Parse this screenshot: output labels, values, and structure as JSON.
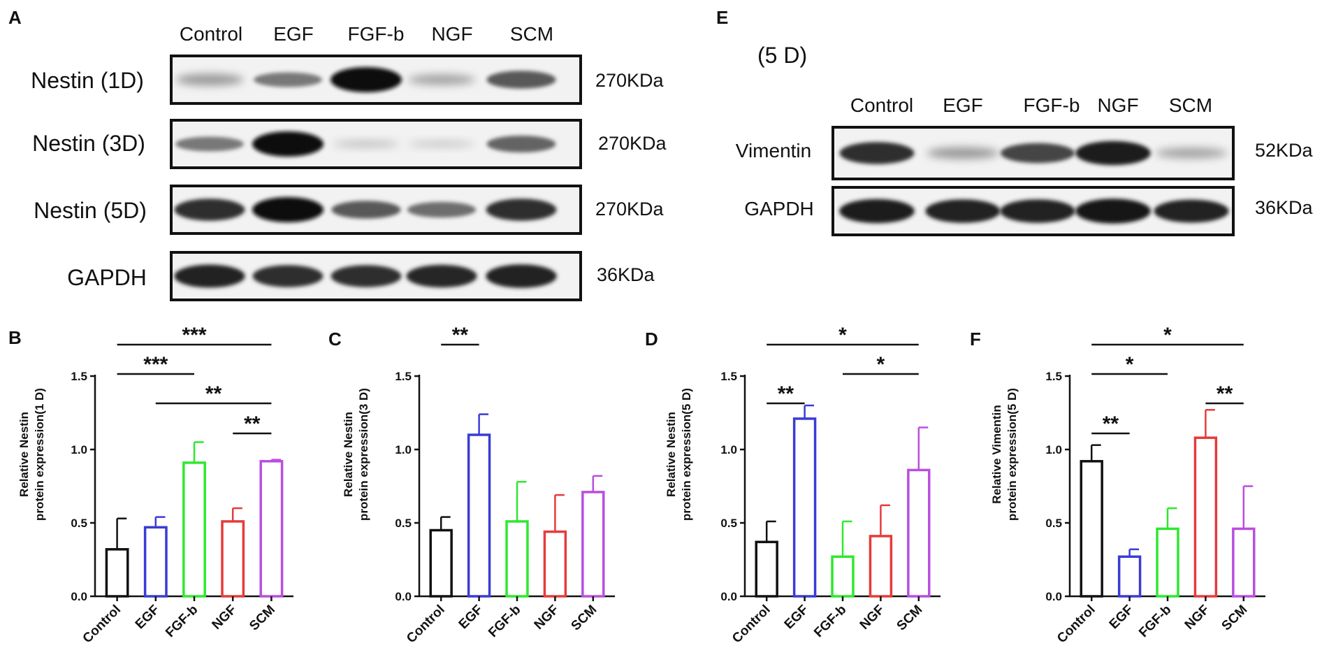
{
  "blot_a": {
    "letter": "A",
    "lanes": [
      "Control",
      "EGF",
      "FGF-b",
      "NGF",
      "SCM"
    ],
    "rows": [
      {
        "label": "Nestin (1D)",
        "kda": "270KDa",
        "intensity": [
          0.35,
          0.5,
          1.0,
          0.3,
          0.65
        ]
      },
      {
        "label": "Nestin (3D)",
        "kda": "270KDa",
        "intensity": [
          0.5,
          1.0,
          0.15,
          0.12,
          0.6
        ]
      },
      {
        "label": "Nestin (5D)",
        "kda": "270KDa",
        "intensity": [
          0.85,
          1.0,
          0.65,
          0.55,
          0.85
        ]
      },
      {
        "label": "GAPDH",
        "kda": "36KDa",
        "intensity": [
          0.9,
          0.85,
          0.85,
          0.88,
          0.92
        ]
      }
    ]
  },
  "blot_e": {
    "letter": "E",
    "title": "(5 D)",
    "lanes": [
      "Control",
      "EGF",
      "FGF-b",
      "NGF",
      "SCM"
    ],
    "rows": [
      {
        "label": "Vimentin",
        "kda": "52KDa",
        "intensity": [
          0.85,
          0.35,
          0.75,
          0.95,
          0.3
        ]
      },
      {
        "label": "GAPDH",
        "kda": "36KDa",
        "intensity": [
          0.95,
          0.92,
          0.92,
          0.98,
          0.9
        ]
      }
    ]
  },
  "colors": {
    "Control": "#111111",
    "EGF": "#3b3bd6",
    "FGF-b": "#2ee82e",
    "NGF": "#e63b3b",
    "SCM": "#b94ee0"
  },
  "chart_data": [
    {
      "type": "bar",
      "letter": "B",
      "categories": [
        "Control",
        "EGF",
        "FGF-b",
        "NGF",
        "SCM"
      ],
      "values": [
        0.32,
        0.47,
        0.91,
        0.51,
        0.92
      ],
      "errors": [
        0.21,
        0.07,
        0.14,
        0.09,
        0.01
      ],
      "ylabel": [
        "Relative Nestin",
        "protein expression(1 D)"
      ],
      "ylim": [
        0,
        1.5
      ],
      "yticks": [
        "0.0",
        "0.5",
        "1.0",
        "1.5"
      ],
      "significance": [
        {
          "from": 0,
          "to": 4,
          "label": "***"
        },
        {
          "from": 0,
          "to": 2,
          "label": "***"
        },
        {
          "from": 1,
          "to": 4,
          "label": "**"
        },
        {
          "from": 3,
          "to": 4,
          "label": "**"
        }
      ]
    },
    {
      "type": "bar",
      "letter": "C",
      "categories": [
        "Control",
        "EGF",
        "FGF-b",
        "NGF",
        "SCM"
      ],
      "values": [
        0.45,
        1.1,
        0.51,
        0.44,
        0.71
      ],
      "errors": [
        0.09,
        0.14,
        0.27,
        0.25,
        0.11
      ],
      "ylabel": [
        "Relative Nestin",
        "protein expression(3 D)"
      ],
      "ylim": [
        0,
        1.5
      ],
      "yticks": [
        "0.0",
        "0.5",
        "1.0",
        "1.5"
      ],
      "significance": [
        {
          "from": 0,
          "to": 1,
          "label": "**"
        }
      ]
    },
    {
      "type": "bar",
      "letter": "D",
      "categories": [
        "Control",
        "EGF",
        "FGF-b",
        "NGF",
        "SCM"
      ],
      "values": [
        0.37,
        1.21,
        0.27,
        0.41,
        0.86
      ],
      "errors": [
        0.14,
        0.09,
        0.24,
        0.21,
        0.29
      ],
      "ylabel": [
        "Relative Nestin",
        "protein expression(5 D)"
      ],
      "ylim": [
        0,
        1.5
      ],
      "yticks": [
        "0.0",
        "0.5",
        "1.0",
        "1.5"
      ],
      "significance": [
        {
          "from": 0,
          "to": 4,
          "label": "*"
        },
        {
          "from": 2,
          "to": 4,
          "label": "*"
        },
        {
          "from": 0,
          "to": 1,
          "label": "**"
        }
      ]
    },
    {
      "type": "bar",
      "letter": "F",
      "categories": [
        "Control",
        "EGF",
        "FGF-b",
        "NGF",
        "SCM"
      ],
      "values": [
        0.92,
        0.27,
        0.46,
        1.08,
        0.46
      ],
      "errors": [
        0.11,
        0.05,
        0.14,
        0.19,
        0.29
      ],
      "ylabel": [
        "Relative Vimentin",
        "protein expression(5 D)"
      ],
      "ylim": [
        0,
        1.5
      ],
      "yticks": [
        "0.0",
        "0.5",
        "1.0",
        "1.5"
      ],
      "significance": [
        {
          "from": 0,
          "to": 4,
          "label": "*"
        },
        {
          "from": 0,
          "to": 2,
          "label": "*"
        },
        {
          "from": 3,
          "to": 4,
          "label": "**"
        },
        {
          "from": 0,
          "to": 1,
          "label": "**"
        }
      ]
    }
  ]
}
